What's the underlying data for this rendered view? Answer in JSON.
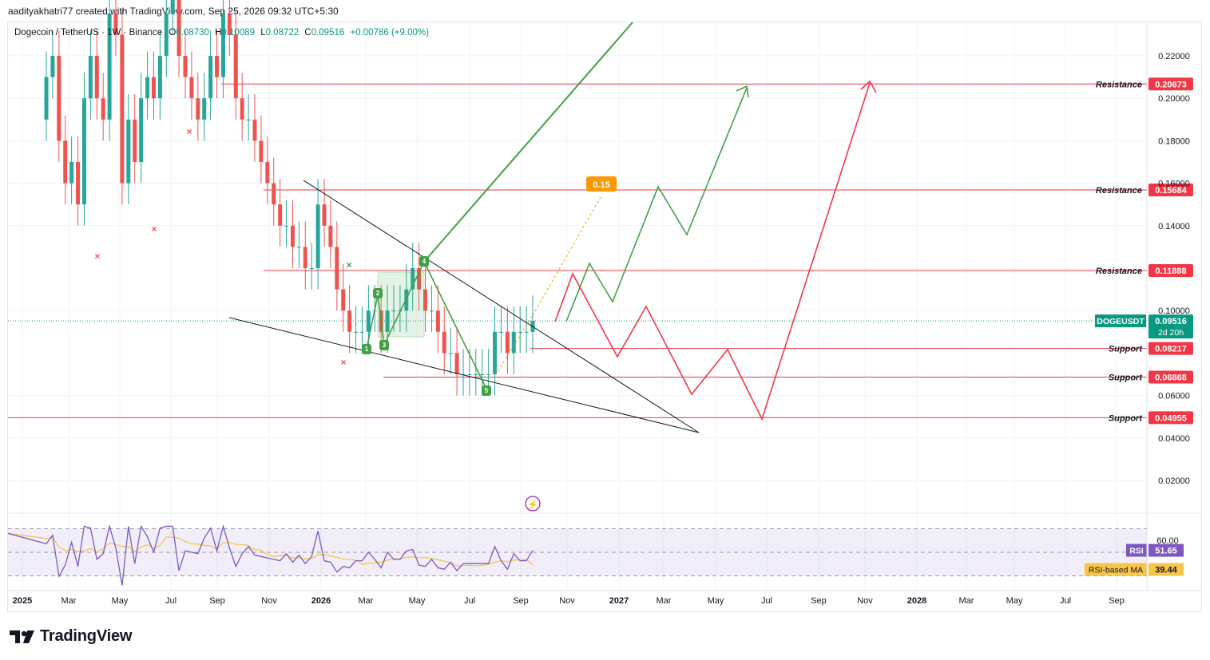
{
  "header": {
    "author_line": "aadityakhatri77 created with TradingView.com, Sep 25, 2026 09:32 UTC+5:30"
  },
  "legend": {
    "symbol": "Dogecoin / TetherUS · 1W · Binance",
    "open_label": "O",
    "open_value": "0.08730",
    "high_label": "H",
    "high_value": "0.10089",
    "low_label": "L",
    "low_value": "0.08722",
    "close_label": "C",
    "close_value": "0.09516",
    "change": "+0.00786 (+9.00%)"
  },
  "colors": {
    "up": "#26a69a",
    "down": "#ef5350",
    "resistance_line": "#e03b4a",
    "green_path": "#43a047",
    "red_path": "#f23645",
    "rsi_line": "#7e57c2",
    "rsi_ma": "#f7c548",
    "projection": "#ff9800",
    "label_red": "#f23645",
    "label_teal": "#089981"
  },
  "chart_data": {
    "type": "candlestick",
    "title": "Dogecoin / TetherUS · 1W · Binance",
    "y_axis": {
      "ticks": [
        "0.22000",
        "0.20000",
        "0.18000",
        "0.16000",
        "0.14000",
        "0.10000",
        "0.06000",
        "0.04000",
        "0.02000"
      ],
      "range": [
        0.0,
        0.235
      ]
    },
    "x_axis": {
      "ticks": [
        "2025",
        "Mar",
        "May",
        "Jul",
        "Sep",
        "Nov",
        "2026",
        "Mar",
        "May",
        "Jul",
        "Sep",
        "Nov",
        "2027",
        "Mar",
        "May",
        "Jul",
        "Sep",
        "Nov",
        "2028",
        "Mar",
        "May",
        "Jul",
        "Sep"
      ],
      "bold_ticks": [
        "2025",
        "2026",
        "2027",
        "2028"
      ]
    },
    "levels": [
      {
        "label": "Resistance",
        "value": 0.20673,
        "text": "0.20673"
      },
      {
        "label": "Resistance",
        "value": 0.15684,
        "text": "0.15684"
      },
      {
        "label": "Resistance",
        "value": 0.11888,
        "text": "0.11888"
      },
      {
        "label": "Support",
        "value": 0.08217,
        "text": "0.08217"
      },
      {
        "label": "Support",
        "value": 0.06868,
        "text": "0.06868"
      },
      {
        "label": "Support",
        "value": 0.04955,
        "text": "0.04955"
      }
    ],
    "price_tag": {
      "symbol": "DOGEUSDT",
      "value": "0.09516",
      "countdown": "2d 20h"
    },
    "target_label": "0.15",
    "wave_labels": [
      "1",
      "2",
      "3",
      "4",
      "5"
    ],
    "candles_close": [
      0.21,
      0.22,
      0.18,
      0.16,
      0.17,
      0.15,
      0.2,
      0.22,
      0.2,
      0.19,
      0.24,
      0.23,
      0.16,
      0.19,
      0.17,
      0.2,
      0.21,
      0.2,
      0.22,
      0.24,
      0.26,
      0.22,
      0.21,
      0.2,
      0.19,
      0.2,
      0.22,
      0.21,
      0.24,
      0.23,
      0.2,
      0.19,
      0.19,
      0.18,
      0.17,
      0.16,
      0.15,
      0.14,
      0.14,
      0.13,
      0.13,
      0.12,
      0.12,
      0.15,
      0.14,
      0.13,
      0.11,
      0.1,
      0.09,
      0.09,
      0.09,
      0.1,
      0.1,
      0.09,
      0.1,
      0.1,
      0.1,
      0.11,
      0.12,
      0.11,
      0.1,
      0.1,
      0.09,
      0.08,
      0.08,
      0.07,
      0.07,
      0.07,
      0.07,
      0.07,
      0.07,
      0.09,
      0.09,
      0.08,
      0.09,
      0.09,
      0.09,
      0.09516
    ],
    "rsi": {
      "label": "RSI",
      "value": "51.65",
      "ma_label": "RSI-based MA",
      "ma_value": "39.44",
      "level_60": "60.00",
      "levels": [
        70,
        50,
        30
      ]
    }
  },
  "footer": {
    "brand": "TradingView"
  }
}
